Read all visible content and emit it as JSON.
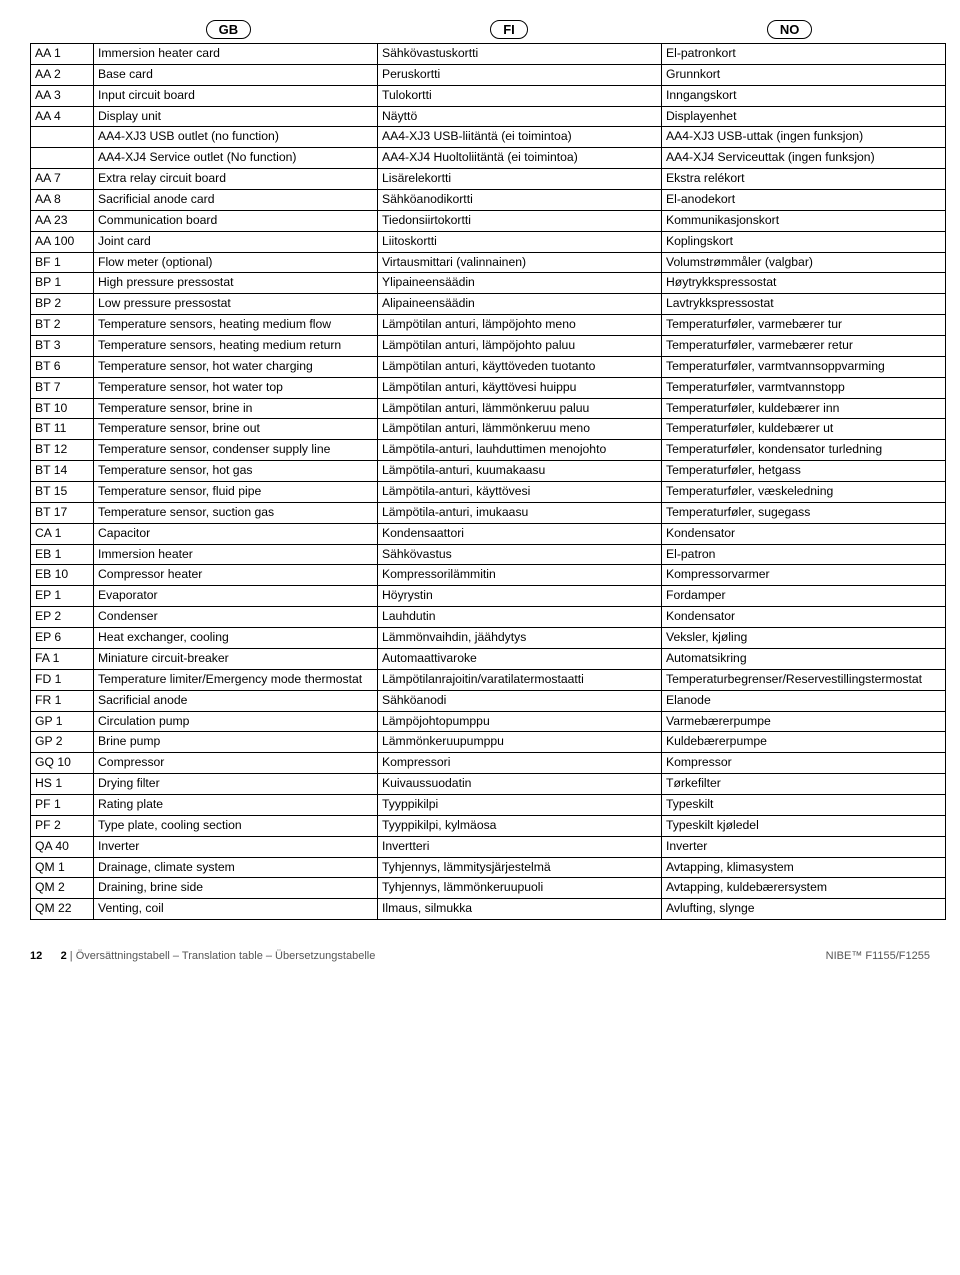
{
  "headers": [
    "GB",
    "FI",
    "NO"
  ],
  "rows": [
    [
      "AA 1",
      "Immersion heater card",
      "Sähkövastuskortti",
      "El-patronkort"
    ],
    [
      "AA 2",
      "Base card",
      "Peruskortti",
      "Grunnkort"
    ],
    [
      "AA 3",
      "Input circuit board",
      "Tulokortti",
      "Inngangskort"
    ],
    [
      "AA 4",
      "Display unit",
      "Näyttö",
      "Displayenhet"
    ],
    [
      "",
      "AA4-XJ3 USB outlet (no function)",
      "AA4-XJ3 USB-liitäntä (ei toimintoa)",
      "AA4-XJ3 USB-uttak (ingen funksjon)"
    ],
    [
      "",
      "AA4-XJ4 Service outlet (No function)",
      "AA4-XJ4 Huoltoliitäntä (ei toimintoa)",
      "AA4-XJ4 Serviceuttak (ingen funksjon)"
    ],
    [
      "AA 7",
      "Extra relay circuit board",
      "Lisärelekortti",
      "Ekstra relékort"
    ],
    [
      "AA 8",
      "Sacrificial anode card",
      "Sähköanodikortti",
      "El-anodekort"
    ],
    [
      "AA 23",
      "Communication board",
      "Tiedonsiirtokortti",
      "Kommunikasjonskort"
    ],
    [
      "AA 100",
      "Joint card",
      "Liitoskortti",
      "Koplingskort"
    ],
    [
      "BF 1",
      "Flow meter (optional)",
      "Virtausmittari (valinnainen)",
      "Volumstrømmåler (valgbar)"
    ],
    [
      "BP 1",
      "High pressure pressostat",
      "Ylipaineensäädin",
      "Høytrykkspressostat"
    ],
    [
      "BP 2",
      "Low pressure pressostat",
      "Alipaineensäädin",
      "Lavtrykkspressostat"
    ],
    [
      "BT 2",
      "Temperature sensors, heating medium flow",
      "Lämpötilan anturi, lämpöjohto meno",
      "Temperaturføler, varmebærer tur"
    ],
    [
      "BT 3",
      "Temperature sensors, heating medium return",
      "Lämpötilan anturi, lämpöjohto paluu",
      "Temperaturføler, varmebærer retur"
    ],
    [
      "BT 6",
      "Temperature sensor, hot water charging",
      "Lämpötilan anturi, käyttöveden tuotanto",
      "Temperaturføler, varmtvannsoppvarming"
    ],
    [
      "BT 7",
      "Temperature sensor, hot water top",
      "Lämpötilan anturi, käyttövesi huippu",
      "Temperaturføler, varmtvannstopp"
    ],
    [
      "BT 10",
      "Temperature sensor, brine in",
      "Lämpötilan anturi, lämmönkeruu paluu",
      "Temperaturføler, kuldebærer inn"
    ],
    [
      "BT 11",
      "Temperature sensor, brine out",
      "Lämpötilan anturi, lämmönkeruu meno",
      "Temperaturføler, kuldebærer ut"
    ],
    [
      "BT 12",
      "Temperature sensor, condenser supply line",
      "Lämpötila-anturi, lauhduttimen menojohto",
      "Temperaturføler, kondensator turledning"
    ],
    [
      "BT 14",
      "Temperature sensor, hot gas",
      "Lämpötila-anturi, kuumakaasu",
      "Temperaturføler, hetgass"
    ],
    [
      "BT 15",
      "Temperature sensor, fluid pipe",
      "Lämpötila-anturi, käyttövesi",
      "Temperaturføler, væskeledning"
    ],
    [
      "BT 17",
      "Temperature sensor, suction gas",
      "Lämpötila-anturi, imukaasu",
      "Temperaturføler, sugegass"
    ],
    [
      "CA 1",
      "Capacitor",
      "Kondensaattori",
      "Kondensator"
    ],
    [
      "EB 1",
      "Immersion heater",
      "Sähkövastus",
      "El-patron"
    ],
    [
      "EB 10",
      "Compressor heater",
      "Kompressorilämmitin",
      "Kompressorvarmer"
    ],
    [
      "EP 1",
      "Evaporator",
      "Höyrystin",
      "Fordamper"
    ],
    [
      "EP 2",
      "Condenser",
      "Lauhdutin",
      "Kondensator"
    ],
    [
      "EP 6",
      "Heat exchanger, cooling",
      "Lämmönvaihdin, jäähdytys",
      "Veksler, kjøling"
    ],
    [
      "FA 1",
      "Miniature circuit-breaker",
      "Automaattivaroke",
      "Automatsikring"
    ],
    [
      "FD 1",
      "Temperature limiter/Emergency mode thermostat",
      "Lämpötilanrajoitin/varatilatermostaatti",
      "Temperaturbegrenser/Reservestillingstermostat"
    ],
    [
      "FR 1",
      "Sacrificial anode",
      "Sähköanodi",
      "Elanode"
    ],
    [
      "GP 1",
      "Circulation pump",
      "Lämpöjohtopumppu",
      "Varmebærerpumpe"
    ],
    [
      "GP 2",
      "Brine pump",
      "Lämmönkeruupumppu",
      "Kuldebærerpumpe"
    ],
    [
      "GQ 10",
      "Compressor",
      "Kompressori",
      "Kompressor"
    ],
    [
      "HS 1",
      "Drying filter",
      "Kuivaussuodatin",
      "Tørkefilter"
    ],
    [
      "PF 1",
      "Rating plate",
      "Tyyppikilpi",
      "Typeskilt"
    ],
    [
      "PF 2",
      "Type plate, cooling section",
      "Tyyppikilpi, kylmäosa",
      "Typeskilt kjøledel"
    ],
    [
      "QA 40",
      "Inverter",
      "Invertteri",
      "Inverter"
    ],
    [
      "QM 1",
      "Drainage, climate system",
      "Tyhjennys, lämmitysjärjestelmä",
      "Avtapping, klimasystem"
    ],
    [
      "QM 2",
      "Draining, brine side",
      "Tyhjennys, lämmönkeruupuoli",
      "Avtapping, kuldebærersystem"
    ],
    [
      "QM 22",
      "Venting, coil",
      "Ilmaus, silmukka",
      "Avlufting, slynge"
    ]
  ],
  "footer": {
    "page": "12",
    "section_num": "2",
    "section_title": "Översättningstabell – Translation table – Übersetzungstabelle",
    "product": "NIBE™ F1155/F1255"
  }
}
